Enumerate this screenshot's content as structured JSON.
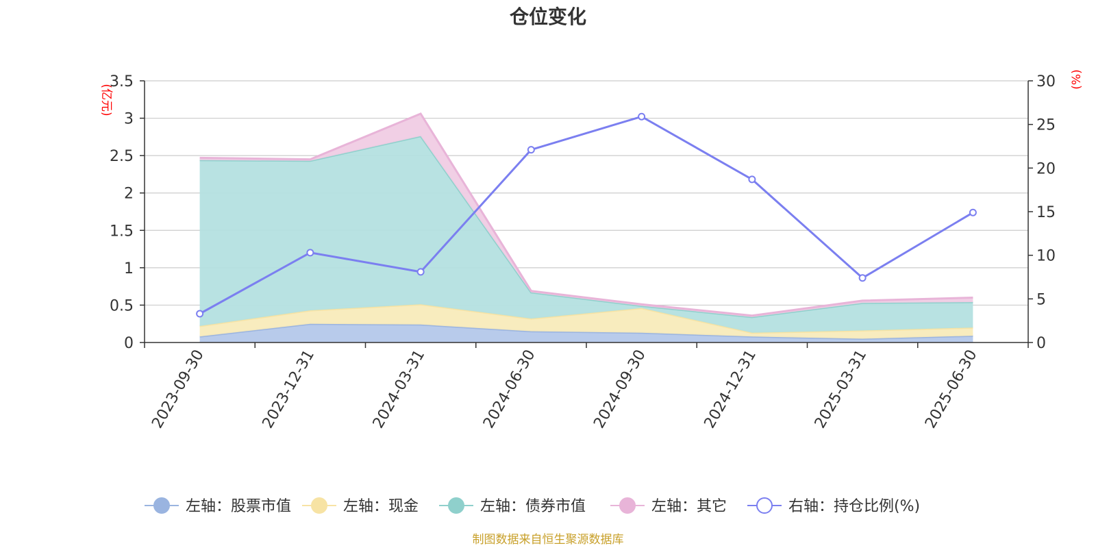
{
  "chart_data": {
    "type": "area",
    "title": "仓位变化",
    "categories": [
      "2023-09-30",
      "2023-12-31",
      "2024-03-31",
      "2024-06-30",
      "2024-09-30",
      "2024-12-31",
      "2025-03-31",
      "2025-06-30"
    ],
    "left_axis": {
      "unit": "(亿元)",
      "ylim": [
        0,
        3.5
      ],
      "ticks": [
        "0",
        "0.5",
        "1",
        "1.5",
        "2",
        "2.5",
        "3",
        "3.5"
      ]
    },
    "right_axis": {
      "unit": "(%)",
      "ylim": [
        0,
        30
      ],
      "ticks": [
        "0",
        "5",
        "10",
        "15",
        "20",
        "25",
        "30"
      ]
    },
    "stacked_series": [
      {
        "name": "左轴：股票市值",
        "axis": "left",
        "color": "#9ab4e0",
        "fill": "#b4c8ea",
        "values": [
          0.08,
          0.25,
          0.24,
          0.15,
          0.13,
          0.08,
          0.05,
          0.09
        ]
      },
      {
        "name": "左轴：现金",
        "axis": "left",
        "color": "#f7e3a4",
        "fill": "#f8ebbb",
        "values": [
          0.14,
          0.18,
          0.27,
          0.17,
          0.33,
          0.05,
          0.11,
          0.11
        ]
      },
      {
        "name": "左轴：债券市值",
        "axis": "left",
        "color": "#8fd0cc",
        "fill": "#b4e0e0",
        "values": [
          2.22,
          2.0,
          2.25,
          0.35,
          0.03,
          0.21,
          0.37,
          0.34
        ]
      },
      {
        "name": "左轴：其它",
        "axis": "left",
        "color": "#e8b4d8",
        "fill": "#f0cce4",
        "values": [
          0.03,
          0.02,
          0.3,
          0.02,
          0.02,
          0.02,
          0.03,
          0.06
        ]
      }
    ],
    "line_series": {
      "name": "右轴：持仓比例(%)",
      "axis": "right",
      "color": "#7b7ff0",
      "values": [
        3.3,
        10.3,
        8.1,
        22.1,
        25.9,
        18.7,
        7.4,
        14.9
      ]
    },
    "grid": true,
    "legend": "bottom",
    "source": "制图数据来自恒生聚源数据库"
  }
}
